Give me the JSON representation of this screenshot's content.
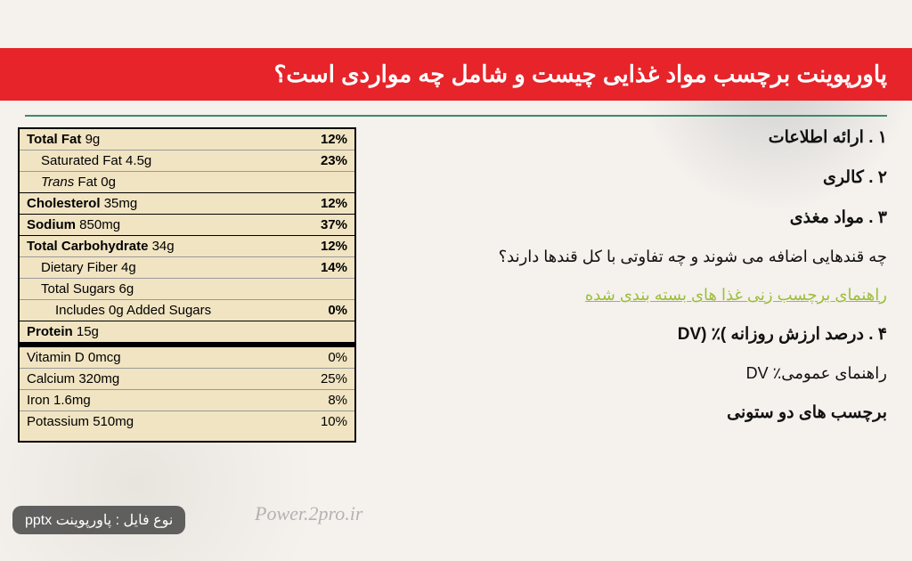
{
  "header": {
    "title": "پاورپوینت  برچسب مواد غذایی چیست و شامل چه مواردی است؟"
  },
  "text": {
    "item1": "۱ . ارائه اطلاعات",
    "item2": "۲ . کالری",
    "item3": "۳ . مواد مغذی",
    "question": "چه قندهایی اضافه می شوند و چه تفاوتی با کل قندها دارند؟",
    "link": "راهنمای برچسب زنی غذا های بسته بندی شده",
    "item4": "۴ . درصد ارزش روزانه )٪ (DV",
    "guide": "راهنمای عمومی٪ DV",
    "item5": "برچسب های دو ستونی"
  },
  "nutrition": {
    "total_fat_label": "Total Fat",
    "total_fat_val": "9g",
    "total_fat_pct": "12%",
    "sat_fat_label": "Saturated Fat 4.5g",
    "sat_fat_pct": "23%",
    "trans_fat_label_pre": "Trans",
    "trans_fat_label_post": " Fat 0g",
    "cholesterol_label": "Cholesterol",
    "cholesterol_val": "35mg",
    "cholesterol_pct": "12%",
    "sodium_label": "Sodium",
    "sodium_val": "850mg",
    "sodium_pct": "37%",
    "carb_label": "Total Carbohydrate",
    "carb_val": "34g",
    "carb_pct": "12%",
    "fiber_label": "Dietary Fiber 4g",
    "fiber_pct": "14%",
    "sugars_label": "Total Sugars 6g",
    "added_label": "Includes 0g Added Sugars",
    "added_pct": "0%",
    "protein_label": "Protein",
    "protein_val": "15g",
    "vitd_label": "Vitamin D 0mcg",
    "vitd_pct": "0%",
    "calcium_label": "Calcium 320mg",
    "calcium_pct": "25%",
    "iron_label": "Iron 1.6mg",
    "iron_pct": "8%",
    "potassium_label": "Potassium 510mg",
    "potassium_pct": "10%"
  },
  "watermark": "Power.2pro.ir",
  "file_badge": "نوع فایل : پاورپوینت pptx"
}
